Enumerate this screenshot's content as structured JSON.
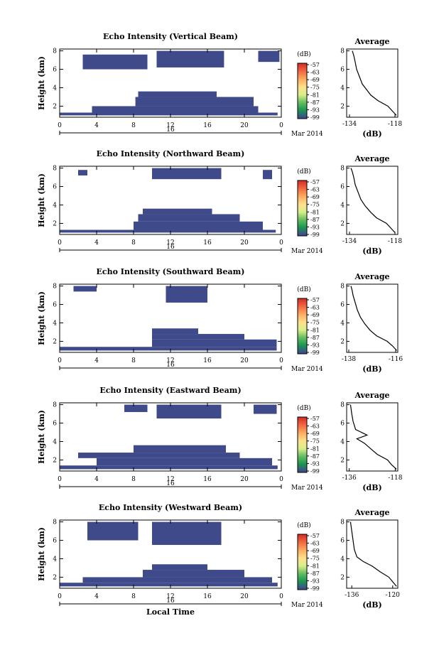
{
  "figure": {
    "date_label": "16",
    "month_year_label": "Mar 2014",
    "xlabel": "Local Time",
    "ylabel": "Height (km)",
    "colorbar_unit": "(dB)",
    "average_title": "Average",
    "average_xlabel": "(dB)"
  },
  "chart_data": [
    {
      "type": "heatmap",
      "title": "Echo Intensity (Vertical Beam)",
      "xlabel": "",
      "ylabel": "Height (km)",
      "x_ticks": [
        "0",
        "4",
        "8",
        "12",
        "16",
        "20",
        "0"
      ],
      "y_ticks": [
        "2",
        "4",
        "6",
        "8"
      ],
      "xlim": [
        0,
        24
      ],
      "ylim": [
        0.8,
        8.2
      ],
      "colorbar": {
        "unit": "(dB)",
        "ticks": [
          "-57",
          "-63",
          "-69",
          "-75",
          "-81",
          "-87",
          "-93",
          "-99"
        ],
        "colors": [
          "#d73027",
          "#f46d43",
          "#fdae61",
          "#fee08b",
          "#d9ef8b",
          "#66bd63",
          "#1a9850",
          "#3f4a8a"
        ]
      },
      "cells": [
        {
          "t0": 0.0,
          "t1": 23.6,
          "h0": 1.0,
          "h1": 1.3
        },
        {
          "t0": 3.5,
          "t1": 21.5,
          "h0": 1.3,
          "h1": 2.0
        },
        {
          "t0": 8.2,
          "t1": 21.0,
          "h0": 2.0,
          "h1": 3.0
        },
        {
          "t0": 8.5,
          "t1": 17.0,
          "h0": 3.0,
          "h1": 3.6
        },
        {
          "t0": 2.5,
          "t1": 9.5,
          "h0": 6.0,
          "h1": 7.6
        },
        {
          "t0": 10.5,
          "t1": 17.8,
          "h0": 6.2,
          "h1": 8.0
        },
        {
          "t0": 21.5,
          "t1": 23.8,
          "h0": 6.8,
          "h1": 8.0
        }
      ],
      "average": {
        "x_ticks": [
          "-134",
          "-118"
        ],
        "xlim": [
          -135,
          -117
        ],
        "y_ticks": [
          "2",
          "4",
          "6",
          "8"
        ],
        "profile": [
          [
            -117.5,
            1.0
          ],
          [
            -119.0,
            1.5
          ],
          [
            -120.5,
            2.0
          ],
          [
            -124.0,
            2.6
          ],
          [
            -126.5,
            3.2
          ],
          [
            -128.0,
            3.8
          ],
          [
            -129.5,
            4.4
          ],
          [
            -130.5,
            5.2
          ],
          [
            -131.5,
            6.0
          ],
          [
            -132.0,
            6.8
          ],
          [
            -132.5,
            7.5
          ],
          [
            -133.0,
            8.0
          ]
        ]
      }
    },
    {
      "type": "heatmap",
      "title": "Echo Intensity (Northward Beam)",
      "xlabel": "",
      "ylabel": "Height (km)",
      "x_ticks": [
        "0",
        "4",
        "8",
        "12",
        "16",
        "20",
        "0"
      ],
      "y_ticks": [
        "2",
        "4",
        "6",
        "8"
      ],
      "xlim": [
        0,
        24
      ],
      "ylim": [
        0.8,
        8.2
      ],
      "colorbar": {
        "unit": "(dB)",
        "ticks": [
          "-57",
          "-63",
          "-69",
          "-75",
          "-81",
          "-87",
          "-93",
          "-99"
        ],
        "colors": [
          "#d73027",
          "#f46d43",
          "#fdae61",
          "#fee08b",
          "#d9ef8b",
          "#66bd63",
          "#1a9850",
          "#3f4a8a"
        ]
      },
      "cells": [
        {
          "t0": 0.0,
          "t1": 23.4,
          "h0": 1.0,
          "h1": 1.3
        },
        {
          "t0": 8.0,
          "t1": 22.0,
          "h0": 1.3,
          "h1": 2.2
        },
        {
          "t0": 8.5,
          "t1": 19.5,
          "h0": 2.2,
          "h1": 3.0
        },
        {
          "t0": 9.0,
          "t1": 16.5,
          "h0": 3.0,
          "h1": 3.6
        },
        {
          "t0": 10.0,
          "t1": 17.5,
          "h0": 6.8,
          "h1": 8.0
        },
        {
          "t0": 2.0,
          "t1": 3.0,
          "h0": 7.2,
          "h1": 7.8
        },
        {
          "t0": 22.0,
          "t1": 23.0,
          "h0": 6.8,
          "h1": 7.8
        }
      ],
      "average": {
        "x_ticks": [
          "-134",
          "-118"
        ],
        "xlim": [
          -135,
          -117
        ],
        "y_ticks": [
          "2",
          "4",
          "6",
          "8"
        ],
        "profile": [
          [
            -118.0,
            1.0
          ],
          [
            -119.5,
            1.5
          ],
          [
            -121.0,
            2.0
          ],
          [
            -124.5,
            2.6
          ],
          [
            -126.5,
            3.2
          ],
          [
            -128.5,
            3.9
          ],
          [
            -130.0,
            4.6
          ],
          [
            -131.0,
            5.4
          ],
          [
            -132.0,
            6.2
          ],
          [
            -132.5,
            7.0
          ],
          [
            -133.0,
            7.6
          ],
          [
            -133.5,
            8.0
          ]
        ]
      }
    },
    {
      "type": "heatmap",
      "title": "Echo Intensity (Southward Beam)",
      "xlabel": "",
      "ylabel": "Height (km)",
      "x_ticks": [
        "0",
        "4",
        "8",
        "12",
        "16",
        "20",
        "0"
      ],
      "y_ticks": [
        "2",
        "4",
        "6",
        "8"
      ],
      "xlim": [
        0,
        24
      ],
      "ylim": [
        0.8,
        8.2
      ],
      "colorbar": {
        "unit": "(dB)",
        "ticks": [
          "-57",
          "-63",
          "-69",
          "-75",
          "-81",
          "-87",
          "-93",
          "-99"
        ],
        "colors": [
          "#d73027",
          "#f46d43",
          "#fdae61",
          "#fee08b",
          "#d9ef8b",
          "#66bd63",
          "#1a9850",
          "#3f4a8a"
        ]
      },
      "cells": [
        {
          "t0": 0.0,
          "t1": 23.5,
          "h0": 1.0,
          "h1": 1.4
        },
        {
          "t0": 10.0,
          "t1": 23.5,
          "h0": 1.4,
          "h1": 2.2
        },
        {
          "t0": 10.0,
          "t1": 20.0,
          "h0": 2.2,
          "h1": 2.8
        },
        {
          "t0": 10.0,
          "t1": 15.0,
          "h0": 2.8,
          "h1": 3.4
        },
        {
          "t0": 11.5,
          "t1": 16.0,
          "h0": 6.2,
          "h1": 8.0
        },
        {
          "t0": 1.5,
          "t1": 4.0,
          "h0": 7.4,
          "h1": 8.0
        }
      ],
      "average": {
        "x_ticks": [
          "-138",
          "-116"
        ],
        "xlim": [
          -139,
          -115
        ],
        "y_ticks": [
          "2",
          "4",
          "6",
          "8"
        ],
        "profile": [
          [
            -115.5,
            1.0
          ],
          [
            -117.5,
            1.5
          ],
          [
            -120.0,
            2.0
          ],
          [
            -125.0,
            2.6
          ],
          [
            -128.0,
            3.2
          ],
          [
            -130.5,
            3.9
          ],
          [
            -132.5,
            4.6
          ],
          [
            -134.0,
            5.4
          ],
          [
            -135.0,
            6.2
          ],
          [
            -136.0,
            7.0
          ],
          [
            -136.5,
            7.6
          ],
          [
            -137.0,
            8.0
          ]
        ]
      }
    },
    {
      "type": "heatmap",
      "title": "Echo Intensity (Eastward Beam)",
      "xlabel": "",
      "ylabel": "Height (km)",
      "x_ticks": [
        "0",
        "4",
        "8",
        "12",
        "16",
        "20",
        "0"
      ],
      "y_ticks": [
        "2",
        "4",
        "6",
        "8"
      ],
      "xlim": [
        0,
        24
      ],
      "ylim": [
        0.8,
        8.2
      ],
      "colorbar": {
        "unit": "(dB)",
        "ticks": [
          "-57",
          "-63",
          "-69",
          "-75",
          "-81",
          "-87",
          "-93",
          "-99"
        ],
        "colors": [
          "#d73027",
          "#f46d43",
          "#fdae61",
          "#fee08b",
          "#d9ef8b",
          "#66bd63",
          "#1a9850",
          "#3f4a8a"
        ]
      },
      "cells": [
        {
          "t0": 0.0,
          "t1": 23.6,
          "h0": 1.0,
          "h1": 1.4
        },
        {
          "t0": 4.0,
          "t1": 23.0,
          "h0": 1.4,
          "h1": 2.2
        },
        {
          "t0": 2.0,
          "t1": 19.5,
          "h0": 2.2,
          "h1": 2.8
        },
        {
          "t0": 8.0,
          "t1": 18.0,
          "h0": 2.8,
          "h1": 3.6
        },
        {
          "t0": 10.5,
          "t1": 17.5,
          "h0": 6.5,
          "h1": 8.0
        },
        {
          "t0": 7.0,
          "t1": 9.5,
          "h0": 7.2,
          "h1": 8.0
        },
        {
          "t0": 21.0,
          "t1": 23.5,
          "h0": 7.0,
          "h1": 8.0
        }
      ],
      "average": {
        "x_ticks": [
          "-136",
          "-118"
        ],
        "xlim": [
          -137,
          -117
        ],
        "y_ticks": [
          "2",
          "4",
          "6",
          "8"
        ],
        "profile": [
          [
            -117.5,
            1.0
          ],
          [
            -119.5,
            1.5
          ],
          [
            -121.0,
            2.0
          ],
          [
            -125.0,
            2.6
          ],
          [
            -127.5,
            3.2
          ],
          [
            -130.0,
            3.8
          ],
          [
            -133.0,
            4.3
          ],
          [
            -129.0,
            4.7
          ],
          [
            -133.5,
            5.3
          ],
          [
            -134.5,
            6.2
          ],
          [
            -135.0,
            7.0
          ],
          [
            -135.5,
            8.0
          ]
        ]
      }
    },
    {
      "type": "heatmap",
      "title": "Echo Intensity (Westward Beam)",
      "xlabel": "Local Time",
      "ylabel": "Height (km)",
      "x_ticks": [
        "0",
        "4",
        "8",
        "12",
        "16",
        "20",
        "0"
      ],
      "y_ticks": [
        "2",
        "4",
        "6",
        "8"
      ],
      "xlim": [
        0,
        24
      ],
      "ylim": [
        0.8,
        8.2
      ],
      "colorbar": {
        "unit": "(dB)",
        "ticks": [
          "-57",
          "-63",
          "-69",
          "-75",
          "-81",
          "-87",
          "-93",
          "-99"
        ],
        "colors": [
          "#d73027",
          "#f46d43",
          "#fdae61",
          "#fee08b",
          "#d9ef8b",
          "#66bd63",
          "#1a9850",
          "#3f4a8a"
        ]
      },
      "cells": [
        {
          "t0": 0.0,
          "t1": 23.6,
          "h0": 1.0,
          "h1": 1.4
        },
        {
          "t0": 2.5,
          "t1": 23.0,
          "h0": 1.4,
          "h1": 2.0
        },
        {
          "t0": 9.0,
          "t1": 20.0,
          "h0": 2.0,
          "h1": 2.8
        },
        {
          "t0": 10.0,
          "t1": 16.0,
          "h0": 2.8,
          "h1": 3.4
        },
        {
          "t0": 3.0,
          "t1": 8.5,
          "h0": 6.0,
          "h1": 8.0
        },
        {
          "t0": 10.0,
          "t1": 17.5,
          "h0": 5.5,
          "h1": 8.0
        }
      ],
      "average": {
        "x_ticks": [
          "-136",
          "-120"
        ],
        "xlim": [
          -138,
          -118
        ],
        "y_ticks": [
          "2",
          "4",
          "6",
          "8"
        ],
        "profile": [
          [
            -118.5,
            1.0
          ],
          [
            -120.0,
            1.5
          ],
          [
            -121.5,
            2.0
          ],
          [
            -125.0,
            2.6
          ],
          [
            -128.0,
            3.2
          ],
          [
            -131.5,
            3.7
          ],
          [
            -134.0,
            4.2
          ],
          [
            -135.0,
            5.0
          ],
          [
            -135.5,
            6.0
          ],
          [
            -136.0,
            7.0
          ],
          [
            -136.5,
            8.0
          ]
        ]
      }
    }
  ]
}
